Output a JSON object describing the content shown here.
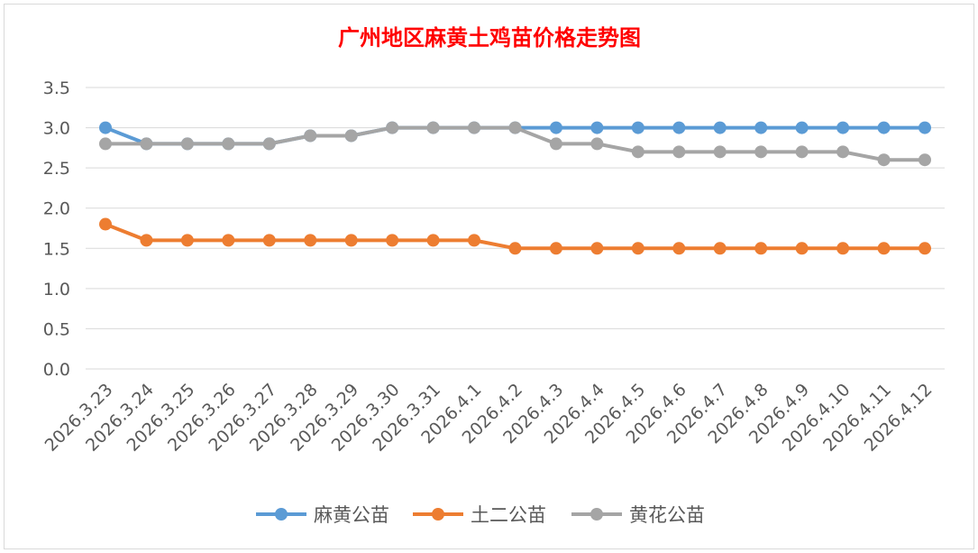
{
  "chart_data": {
    "type": "line",
    "title": "广州地区麻黄土鸡苗价格走势图",
    "title_color": "#ff0000",
    "xlabel": "",
    "ylabel": "",
    "ylim": [
      0,
      3.5
    ],
    "yticks": [
      "0.0",
      "0.5",
      "1.0",
      "1.5",
      "2.0",
      "2.5",
      "3.0",
      "3.5"
    ],
    "grid": true,
    "legend_position": "bottom",
    "categories": [
      "2026.3.23",
      "2026.3.24",
      "2026.3.25",
      "2026.3.26",
      "2026.3.27",
      "2026.3.28",
      "2026.3.29",
      "2026.3.30",
      "2026.3.31",
      "2026.4.1",
      "2026.4.2",
      "2026.4.3",
      "2026.4.4",
      "2026.4.5",
      "2026.4.6",
      "2026.4.7",
      "2026.4.8",
      "2026.4.9",
      "2026.4.10",
      "2026.4.11",
      "2026.4.12"
    ],
    "series": [
      {
        "name": "麻黄公苗",
        "color": "#5b9bd5",
        "values": [
          3.0,
          2.8,
          2.8,
          2.8,
          2.8,
          2.9,
          2.9,
          3.0,
          3.0,
          3.0,
          3.0,
          3.0,
          3.0,
          3.0,
          3.0,
          3.0,
          3.0,
          3.0,
          3.0,
          3.0,
          3.0
        ]
      },
      {
        "name": "土二公苗",
        "color": "#ed7d31",
        "values": [
          1.8,
          1.6,
          1.6,
          1.6,
          1.6,
          1.6,
          1.6,
          1.6,
          1.6,
          1.6,
          1.5,
          1.5,
          1.5,
          1.5,
          1.5,
          1.5,
          1.5,
          1.5,
          1.5,
          1.5,
          1.5
        ]
      },
      {
        "name": "黄花公苗",
        "color": "#a5a5a5",
        "values": [
          2.8,
          2.8,
          2.8,
          2.8,
          2.8,
          2.9,
          2.9,
          3.0,
          3.0,
          3.0,
          3.0,
          2.8,
          2.8,
          2.7,
          2.7,
          2.7,
          2.7,
          2.7,
          2.7,
          2.6,
          2.6
        ]
      }
    ]
  }
}
